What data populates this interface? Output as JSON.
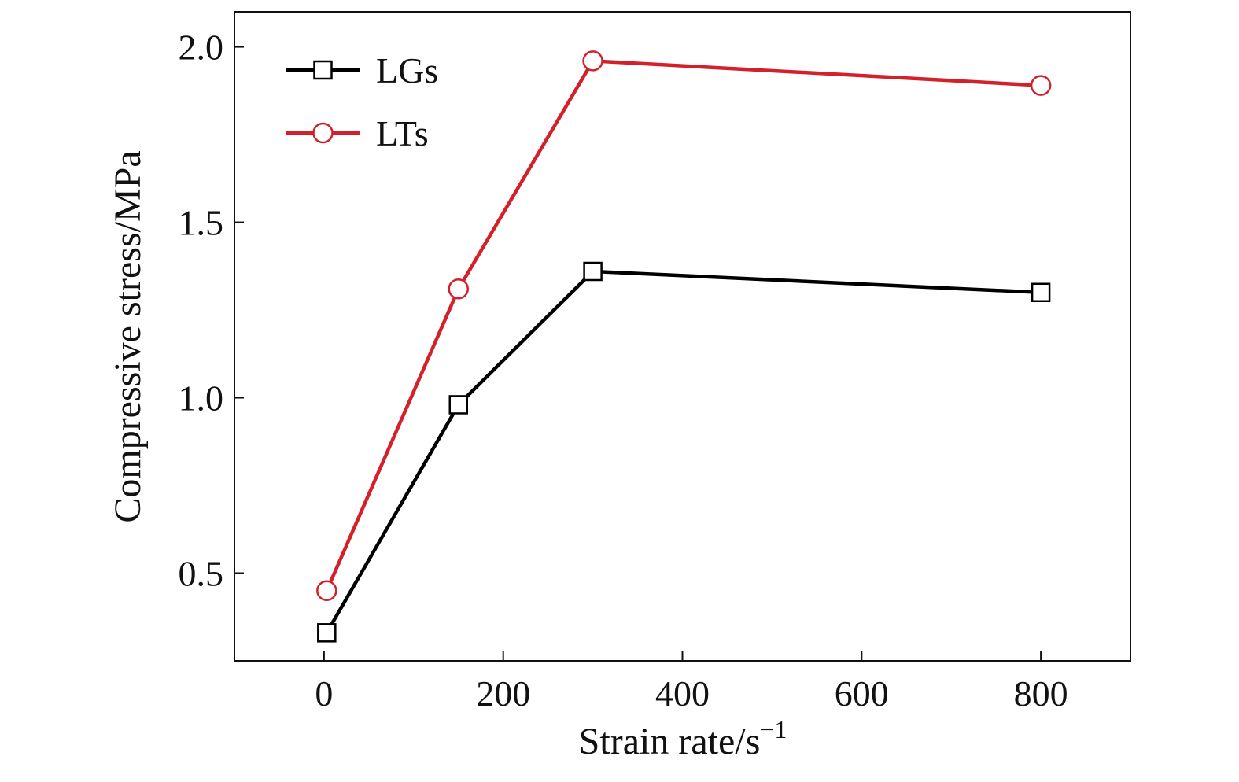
{
  "chart_data": {
    "type": "line",
    "title": "",
    "xlabel": "Strain rate/s",
    "xlabel_superscript": "−1",
    "ylabel": "Compressive stress/MPa",
    "xlim": [
      -100,
      900
    ],
    "ylim": [
      0.25,
      2.1
    ],
    "xticks": [
      0,
      200,
      400,
      600,
      800
    ],
    "xtick_labels": [
      "0",
      "200",
      "400",
      "600",
      "800"
    ],
    "yticks": [
      0.5,
      1.0,
      1.5,
      2.0
    ],
    "ytick_labels": [
      "0.5",
      "1.0",
      "1.5",
      "2.0"
    ],
    "grid": false,
    "legend_position": "top-left",
    "x": [
      3,
      150,
      300,
      800
    ],
    "series": [
      {
        "name": "LGs",
        "values": [
          0.33,
          0.98,
          1.36,
          1.3
        ],
        "color": "#000000",
        "marker": "square"
      },
      {
        "name": "LTs",
        "values": [
          0.45,
          1.31,
          1.96,
          1.89
        ],
        "color": "#d3202a",
        "marker": "circle"
      }
    ]
  }
}
